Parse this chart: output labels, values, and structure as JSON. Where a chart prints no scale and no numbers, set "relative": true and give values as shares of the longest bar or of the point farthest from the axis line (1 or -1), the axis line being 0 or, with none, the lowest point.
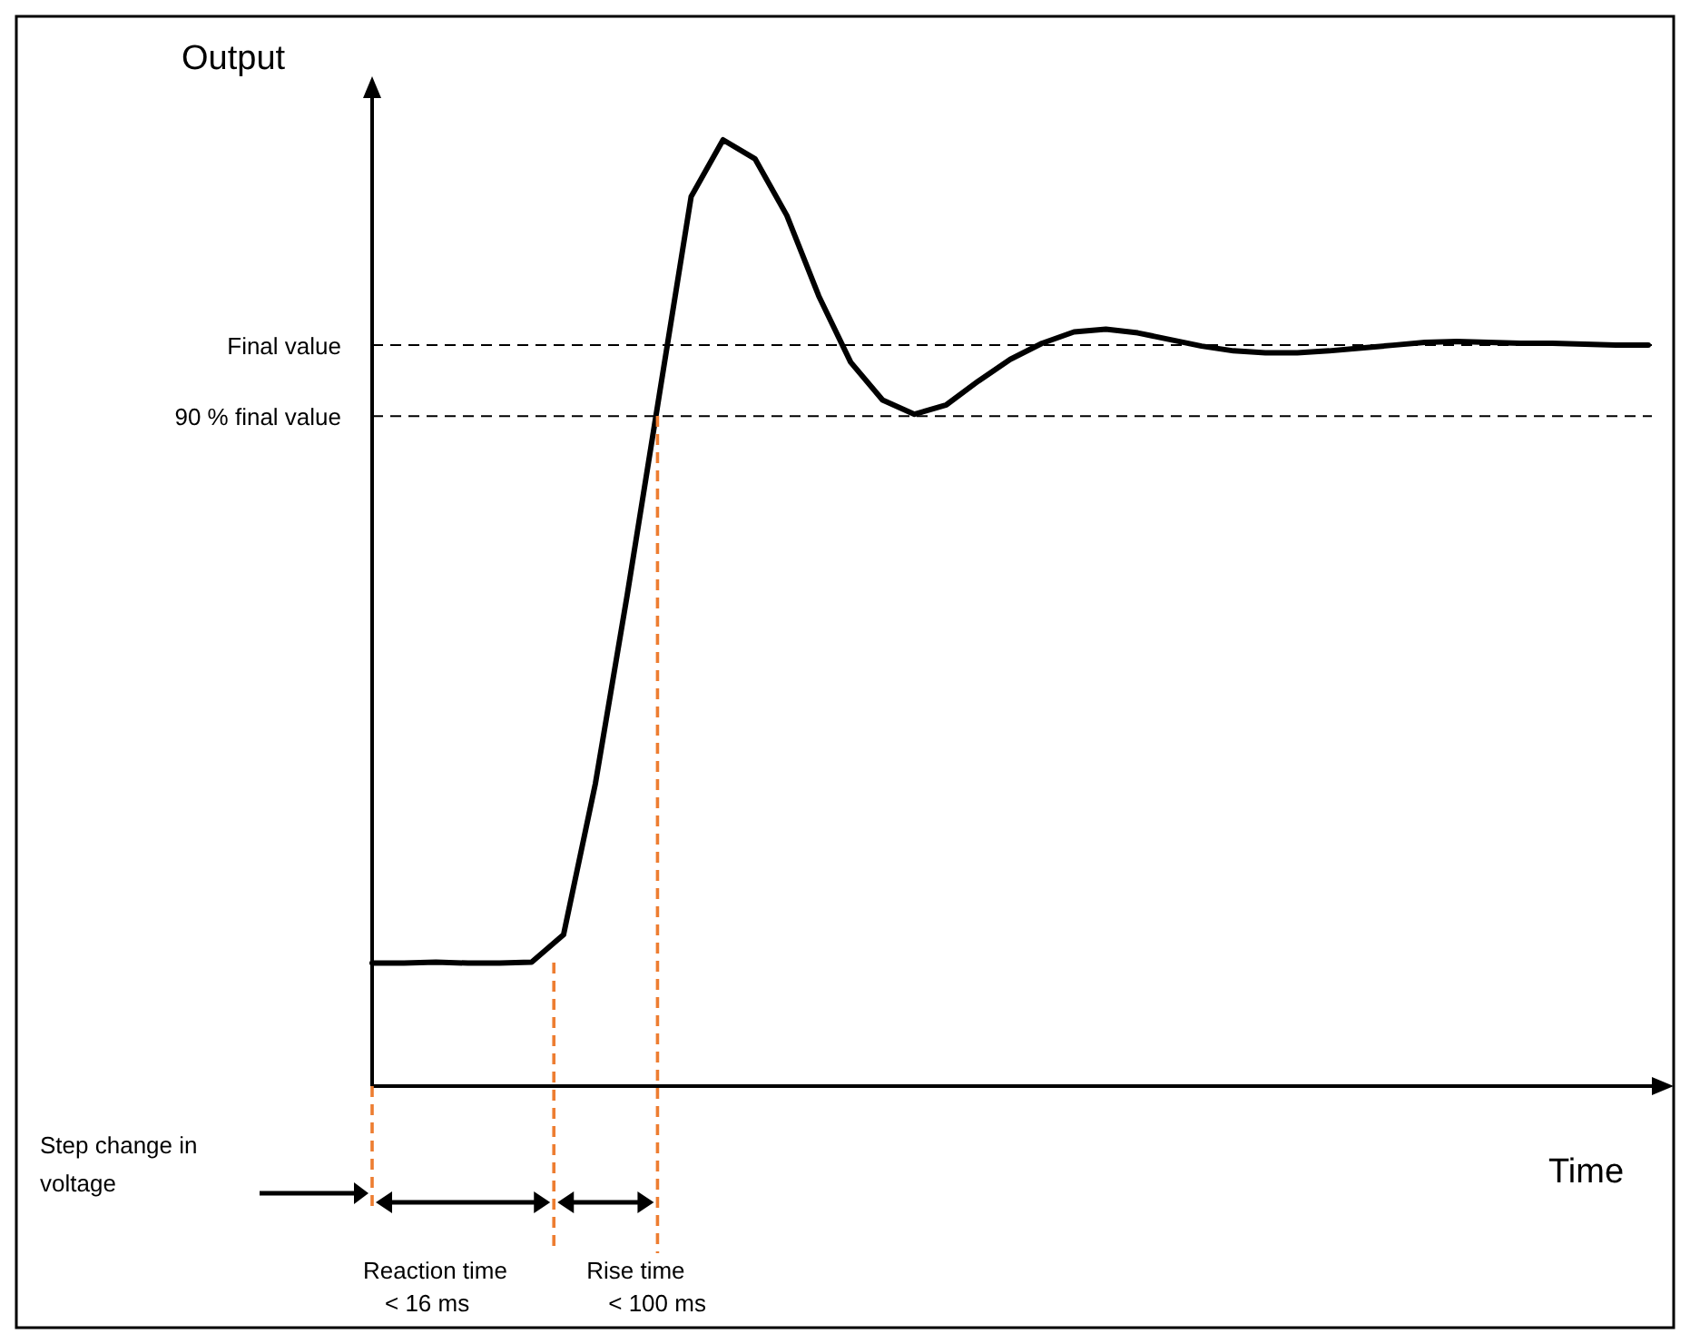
{
  "chart_data": {
    "type": "line",
    "relative": true,
    "xlabel": "Time",
    "ylabel": "Output",
    "categories": [
      null,
      null,
      null,
      null,
      null,
      null,
      null,
      null,
      null,
      null,
      null,
      null,
      null,
      null,
      null,
      null,
      null,
      null,
      null,
      null,
      null,
      null,
      null,
      null,
      null,
      null,
      null,
      null,
      null,
      null,
      null,
      null,
      null,
      null,
      null,
      null,
      null,
      null,
      null,
      null,
      null
    ],
    "series": [
      {
        "color": "#000000",
        "line_style": "solid",
        "values": [
          0.13,
          0.13,
          0.131,
          0.13,
          0.13,
          0.131,
          0.16,
          0.32,
          0.52,
          0.73,
          0.94,
          1,
          0.98,
          0.92,
          0.835,
          0.765,
          0.725,
          0.71,
          0.72,
          0.745,
          0.768,
          0.785,
          0.797,
          0.8,
          0.796,
          0.789,
          0.782,
          0.777,
          0.775,
          0.775,
          0.777,
          0.78,
          0.783,
          0.786,
          0.787,
          0.786,
          0.785,
          0.785,
          0.784,
          0.783,
          0.783
        ]
      }
    ],
    "ref_lines": [
      {
        "axis": "y",
        "value": 0.783,
        "label": "Final value",
        "color": "#000000",
        "line_style": "dashed"
      },
      {
        "axis": "y",
        "value": 0.708,
        "label": "90 % final value",
        "color": "#000000",
        "line_style": "dashed"
      }
    ],
    "annotations": [
      "Step change in voltage",
      "Reaction time < 16 ms",
      "Rise time < 100 ms"
    ]
  }
}
